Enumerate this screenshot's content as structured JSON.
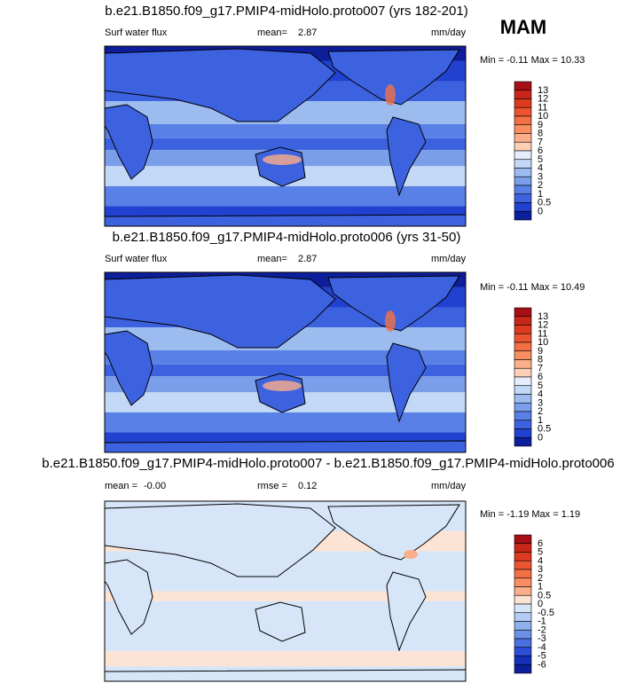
{
  "season": "MAM",
  "panels": [
    {
      "title": "b.e21.B1850.f09_g17.PMIP4-midHolo.proto007 (yrs 182-201)",
      "left_label": "Surf water flux",
      "stat_label": "mean=",
      "stat_value": "2.87",
      "units": "mm/day",
      "range_text": "Min = -0.11 Max = 10.33",
      "colorbar": {
        "labels": [
          "13",
          "12",
          "11",
          "10",
          "9",
          "8",
          "7",
          "6",
          "5",
          "4",
          "3",
          "2",
          "1",
          "0.5",
          "0"
        ],
        "colors": [
          "#a50f15",
          "#c8261a",
          "#dc3b20",
          "#ea5530",
          "#f37045",
          "#f88e62",
          "#fbae8a",
          "#fdd0b6",
          "#e4eefc",
          "#c2d8f6",
          "#9cbcf0",
          "#7a9eea",
          "#5980e6",
          "#3d62e0",
          "#2141d0",
          "#0c1e9a"
        ]
      }
    },
    {
      "title": "b.e21.B1850.f09_g17.PMIP4-midHolo.proto006 (yrs 31-50)",
      "left_label": "Surf water flux",
      "stat_label": "mean=",
      "stat_value": "2.87",
      "units": "mm/day",
      "range_text": "Min = -0.11 Max = 10.49",
      "colorbar": {
        "labels": [
          "13",
          "12",
          "11",
          "10",
          "9",
          "8",
          "7",
          "6",
          "5",
          "4",
          "3",
          "2",
          "1",
          "0.5",
          "0"
        ],
        "colors": [
          "#a50f15",
          "#c8261a",
          "#dc3b20",
          "#ea5530",
          "#f37045",
          "#f88e62",
          "#fbae8a",
          "#fdd0b6",
          "#e4eefc",
          "#c2d8f6",
          "#9cbcf0",
          "#7a9eea",
          "#5980e6",
          "#3d62e0",
          "#2141d0",
          "#0c1e9a"
        ]
      }
    },
    {
      "title": "b.e21.B1850.f09_g17.PMIP4-midHolo.proto007 - b.e21.B1850.f09_g17.PMIP4-midHolo.proto006",
      "left_label": "mean =",
      "left_value": "-0.00",
      "stat_label": "rmse =",
      "stat_value": "0.12",
      "units": "mm/day",
      "range_text": "Min = -1.19 Max = 1.19",
      "colorbar": {
        "labels": [
          "6",
          "5",
          "4",
          "3",
          "2",
          "1",
          "0.5",
          "0",
          "-0.5",
          "-1",
          "-2",
          "-3",
          "-4",
          "-5",
          "-6"
        ],
        "colors": [
          "#a50f15",
          "#c8261a",
          "#dc3b20",
          "#ea5530",
          "#f37045",
          "#f88e62",
          "#fbae8a",
          "#fde3d3",
          "#d6e6f8",
          "#b4ccf2",
          "#8fb0ec",
          "#6c90e6",
          "#4a6fe0",
          "#2d4dd6",
          "#1530b8",
          "#0c1e9a"
        ]
      }
    }
  ]
}
